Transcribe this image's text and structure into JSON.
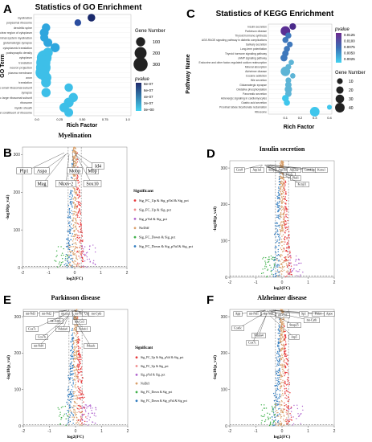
{
  "panels": {
    "A": {
      "letter": "A",
      "title": "Statistics of GO Enrichment",
      "ylabel": "GO Term",
      "xlabel": "Rich Factor"
    },
    "C": {
      "letter": "C",
      "title": "Statistics of KEGG Enrichment",
      "ylabel": "Pathway Name",
      "xlabel": "Rich Factor"
    },
    "B": {
      "letter": "B",
      "title": "Myelination"
    },
    "D": {
      "letter": "D",
      "title": "Insulin secretion"
    },
    "E": {
      "letter": "E",
      "title": "Parkinson disease"
    },
    "F": {
      "letter": "F",
      "title": "Alzheimer disease"
    }
  },
  "volcano": {
    "xlabel": "log2(FC)",
    "ylabel": "-log10(p_val)",
    "legend_title": "Significant",
    "legend_items": [
      {
        "label": "Sig_FC_Up & Sig_pVal & Sig_pct",
        "color": "#e7383a"
      },
      {
        "label": "Sig_FC_Up & Sig_pct",
        "color": "#f08a8a"
      },
      {
        "label": "Sig_pVal & Sig_pct",
        "color": "#b36ad0"
      },
      {
        "label": "NoDiff",
        "color": "#d9a06b"
      },
      {
        "label": "Sig_FC_Down & Sig_pct",
        "color": "#3fb04a"
      },
      {
        "label": "Sig_FC_Down & Sig_pVal & Sig_pct",
        "color": "#2f7bbf"
      }
    ]
  },
  "chart_data": [
    {
      "type": "scatter",
      "panel": "A",
      "title": "Statistics of GO Enrichment",
      "xlabel": "Rich Factor",
      "ylabel": "GO Term",
      "xlim": [
        0.0,
        1.0
      ],
      "xticks": [
        "0.0",
        "0.25",
        "0.50",
        "0.75",
        "1.0"
      ],
      "size_legend_title": "Gene Number",
      "size_legend": [
        100,
        200,
        300
      ],
      "color_legend_title": "pvalue",
      "color_legend": [
        "8e-07",
        "6e-07",
        "4e-07",
        "2e-07",
        "0e+00"
      ],
      "terms": [
        "myelination",
        "polysomal ribosome",
        "dendritic spine",
        "perinuclear region of cytoplasm",
        "distal terminal system myelination",
        "glutamatergic synapse",
        "cytoplasmic translation",
        "postsynaptic density",
        "cytoplasm",
        "translation",
        "neuron projection",
        "plasma membrane",
        "axon",
        "translation",
        "cytosolic small ribosomal subunit",
        "synapse",
        "cytosolic large ribosomal subunit",
        "ribosome",
        "myelin sheath",
        "structural constituent of ribosome"
      ],
      "rich_factor": [
        0.6,
        0.45,
        0.1,
        0.08,
        0.08,
        0.12,
        0.2,
        0.12,
        0.08,
        0.07,
        0.07,
        0.06,
        0.1,
        0.1,
        0.35,
        0.1,
        0.4,
        0.35,
        0.3,
        0.35
      ],
      "gene_number": [
        60,
        40,
        80,
        90,
        70,
        90,
        100,
        120,
        330,
        300,
        320,
        280,
        150,
        120,
        80,
        100,
        100,
        120,
        110,
        90
      ]
    },
    {
      "type": "scatter",
      "panel": "C",
      "title": "Statistics of KEGG Enrichment",
      "xlabel": "Rich Factor",
      "ylabel": "Pathway Name",
      "xlim": [
        0.0,
        0.4
      ],
      "xticks": [
        "0.1",
        "0.2",
        "0.3",
        "0.4"
      ],
      "color_legend_title": "pvalue",
      "color_legend": [
        "0.0125",
        "0.0100",
        "0.0075",
        "0.0050",
        "0.0025"
      ],
      "size_legend_title": "Gene Number",
      "size_legend": [
        10,
        20,
        30,
        40
      ],
      "terms": [
        "Insulin secretion",
        "Parkinson disease",
        "Thyroid hormone synthesis",
        "AGE-RAGE signaling pathway in diabetic complications",
        "Salivary secretion",
        "Long-term potentiation",
        "Thyroid hormone signaling pathway",
        "cAMP signaling pathway",
        "Endocrine and other factor-regulated sodium reabsorption",
        "Mineral absorption",
        "Alzheimer disease",
        "Cocaine addiction",
        "Bile secretion",
        "Glutamatergic synapse",
        "Oxidative phosphorylation",
        "Pancreatic secretion",
        "Adrenergic signaling in cardiomyocytes",
        "Gastric acid secretion",
        "Proximal tubule bicarbonate reclamation",
        "Ribosome"
      ],
      "rich_factor": [
        0.15,
        0.1,
        0.12,
        0.1,
        0.13,
        0.11,
        0.1,
        0.09,
        0.14,
        0.12,
        0.1,
        0.15,
        0.12,
        0.12,
        0.12,
        0.12,
        0.1,
        0.11,
        0.4,
        0.3
      ],
      "gene_number": [
        15,
        40,
        12,
        12,
        10,
        12,
        14,
        18,
        8,
        10,
        40,
        8,
        10,
        14,
        20,
        14,
        16,
        12,
        6,
        40
      ]
    },
    {
      "type": "scatter",
      "panel": "B",
      "title": "Myelination",
      "xlabel": "log2(FC)",
      "ylabel": "-log10(p_val)",
      "xlim": [
        -2,
        2
      ],
      "ylim": [
        0,
        320
      ],
      "xticks": [
        -2,
        -1,
        0,
        1,
        2
      ],
      "yticks": [
        0,
        100,
        200,
        300
      ],
      "labeled_genes": [
        "Plp1",
        "Aspa",
        "Mag",
        "Nkx6-2",
        "Mobp",
        "Mbp",
        "Id4",
        "Sox10"
      ]
    },
    {
      "type": "scatter",
      "panel": "D",
      "title": "Insulin secretion",
      "xlabel": "log2(FC)",
      "ylabel": "-log10(p_val)",
      "xlim": [
        -2,
        2
      ],
      "ylim": [
        0,
        320
      ],
      "xticks": [
        -2,
        -1,
        0,
        1,
        2
      ],
      "yticks": [
        0,
        100,
        200,
        300
      ],
      "labeled_genes": [
        "Cox8",
        "Atp1a1",
        "Snap25",
        "Atp1b1",
        "Atp2a2",
        "Camk2g",
        "Kcnu1",
        "Prkcb",
        "Pkd1",
        "Kcnj11"
      ]
    },
    {
      "type": "scatter",
      "panel": "E",
      "title": "Parkinson disease",
      "xlabel": "log2(FC)",
      "ylabel": "-log10(p_val)",
      "xlim": [
        -2,
        2
      ],
      "ylim": [
        0,
        320
      ],
      "xticks": [
        -2,
        -1,
        0,
        1,
        2
      ],
      "yticks": [
        0,
        100,
        200,
        300
      ],
      "labeled_genes": [
        "mt-Nd3",
        "mt-Nd2",
        "mt-Atp6",
        "mt-Co1",
        "mt-Nd1",
        "Uqcrh",
        "mt-Co3",
        "mt-Cytb",
        "Cox7c",
        "Ndufa4",
        "Cox7b",
        "Ndufc1",
        "mt-Nd4",
        "Prkacb"
      ]
    },
    {
      "type": "scatter",
      "panel": "F",
      "title": "Alzheimer disease",
      "xlabel": "log2(FC)",
      "ylabel": "-log10(p_val)",
      "xlim": [
        -2,
        2
      ],
      "ylim": [
        0,
        320
      ],
      "xticks": [
        -2,
        -1,
        0,
        1,
        2
      ],
      "yticks": [
        0,
        100,
        200,
        300
      ],
      "labeled_genes": [
        "App",
        "mt-Nd1",
        "mt-Nd2",
        "Cox6c",
        "mt-Co1",
        "Ndufa4",
        "Cox7c",
        "Snap25",
        "mt-Cytb",
        "Plcb1",
        "Apoe",
        "Sp1",
        "Atp5"
      ]
    }
  ]
}
